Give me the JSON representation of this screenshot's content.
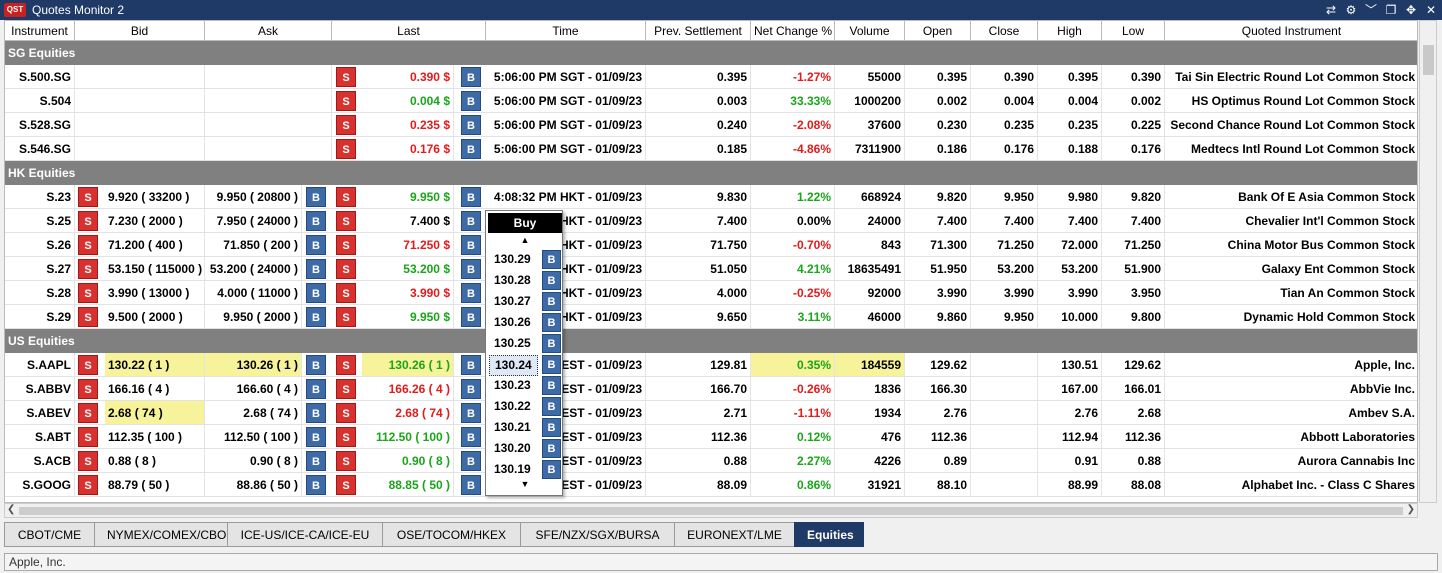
{
  "window": {
    "title": "Quotes Monitor 2",
    "logo": "QST"
  },
  "titlebar_icons": [
    "link-icon",
    "settings-icon",
    "collapse-icon",
    "restore-icon",
    "move-icon",
    "close-icon"
  ],
  "columns": [
    "Instrument",
    "Bid",
    "Ask",
    "Last",
    "Time",
    "Prev. Settlement",
    "Net Change %",
    "Volume",
    "Open",
    "Close",
    "High",
    "Low",
    "Quoted Instrument"
  ],
  "sections": {
    "sg": "SG Equities",
    "hk": "HK Equities",
    "us": "US Equities"
  },
  "labels": {
    "sell": "S",
    "buy": "B"
  },
  "sg_rows": [
    {
      "inst": "S.500.SG",
      "last": "0.390 $",
      "time": "5:06:00 PM SGT - 01/09/23",
      "prev": "0.395",
      "chg": "-1.27%",
      "vol": "55000",
      "open": "0.395",
      "close": "0.390",
      "high": "0.395",
      "low": "0.390",
      "quoted": "Tai Sin Electric Round Lot Common Stock"
    },
    {
      "inst": "S.504",
      "last": "0.004 $",
      "time": "5:06:00 PM SGT - 01/09/23",
      "prev": "0.003",
      "chg": "33.33%",
      "vol": "1000200",
      "open": "0.002",
      "close": "0.004",
      "high": "0.004",
      "low": "0.002",
      "quoted": "HS Optimus Round Lot Common Stock"
    },
    {
      "inst": "S.528.SG",
      "last": "0.235 $",
      "time": "5:06:00 PM SGT - 01/09/23",
      "prev": "0.240",
      "chg": "-2.08%",
      "vol": "37600",
      "open": "0.230",
      "close": "0.235",
      "high": "0.235",
      "low": "0.225",
      "quoted": "Second Chance Round Lot Common Stock"
    },
    {
      "inst": "S.546.SG",
      "last": "0.176 $",
      "time": "5:06:00 PM SGT - 01/09/23",
      "prev": "0.185",
      "chg": "-4.86%",
      "vol": "7311900",
      "open": "0.186",
      "close": "0.176",
      "high": "0.188",
      "low": "0.176",
      "quoted": "Medtecs Intl Round Lot Common Stock"
    }
  ],
  "hk_rows": [
    {
      "inst": "S.23",
      "bid": "9.920 ( 33200 )",
      "ask": "9.950 ( 20800 )",
      "last": "9.950 $",
      "time": "4:08:32 PM HKT - 01/09/23",
      "prev": "9.830",
      "chg": "1.22%",
      "vol": "668924",
      "open": "9.820",
      "close": "9.950",
      "high": "9.980",
      "low": "9.820",
      "quoted": "Bank Of E Asia Common Stock"
    },
    {
      "inst": "S.25",
      "bid": "7.230 ( 2000 )",
      "ask": "7.950 ( 24000 )",
      "last": "7.400 $",
      "time": "HKT - 01/09/23",
      "prev": "7.400",
      "chg": "0.00%",
      "vol": "24000",
      "open": "7.400",
      "close": "7.400",
      "high": "7.400",
      "low": "7.400",
      "quoted": "Chevalier Int'l Common Stock"
    },
    {
      "inst": "S.26",
      "bid": "71.200 ( 400 )",
      "ask": "71.850 ( 200 )",
      "last": "71.250 $",
      "time": "HKT - 01/09/23",
      "prev": "71.750",
      "chg": "-0.70%",
      "vol": "843",
      "open": "71.300",
      "close": "71.250",
      "high": "72.000",
      "low": "71.250",
      "quoted": "China Motor Bus Common Stock"
    },
    {
      "inst": "S.27",
      "bid": "53.150 ( 115000 )",
      "ask": "53.200 ( 24000 )",
      "last": "53.200 $",
      "time": "HKT - 01/09/23",
      "prev": "51.050",
      "chg": "4.21%",
      "vol": "18635491",
      "open": "51.950",
      "close": "53.200",
      "high": "53.200",
      "low": "51.900",
      "quoted": "Galaxy Ent Common Stock"
    },
    {
      "inst": "S.28",
      "bid": "3.990 ( 13000 )",
      "ask": "4.000 ( 11000 )",
      "last": "3.990 $",
      "time": "HKT - 01/09/23",
      "prev": "4.000",
      "chg": "-0.25%",
      "vol": "92000",
      "open": "3.990",
      "close": "3.990",
      "high": "3.990",
      "low": "3.950",
      "quoted": "Tian An Common Stock"
    },
    {
      "inst": "S.29",
      "bid": "9.500 ( 2000 )",
      "ask": "9.950 ( 2000 )",
      "last": "9.950 $",
      "time": "HKT - 01/09/23",
      "prev": "9.650",
      "chg": "3.11%",
      "vol": "46000",
      "open": "9.860",
      "close": "9.950",
      "high": "10.000",
      "low": "9.800",
      "quoted": "Dynamic Hold Common Stock"
    }
  ],
  "us_rows": [
    {
      "inst": "S.AAPL",
      "bid": "130.22 ( 1 )",
      "ask": "130.26 ( 1 )",
      "last": "130.26 ( 1 )",
      "time": "EST - 01/09/23",
      "prev": "129.81",
      "chg": "0.35%",
      "vol": "184559",
      "open": "129.62",
      "close": "",
      "high": "130.51",
      "low": "129.62",
      "quoted": "Apple, Inc."
    },
    {
      "inst": "S.ABBV",
      "bid": "166.16 ( 4 )",
      "ask": "166.60 ( 4 )",
      "last": "166.26 ( 4 )",
      "time": "EST - 01/09/23",
      "prev": "166.70",
      "chg": "-0.26%",
      "vol": "1836",
      "open": "166.30",
      "close": "",
      "high": "167.00",
      "low": "166.01",
      "quoted": "AbbVie Inc."
    },
    {
      "inst": "S.ABEV",
      "bid": "2.68 ( 74 )",
      "ask": "2.68 ( 74 )",
      "last": "2.68 ( 74 )",
      "time": "EST - 01/09/23",
      "prev": "2.71",
      "chg": "-1.11%",
      "vol": "1934",
      "open": "2.76",
      "close": "",
      "high": "2.76",
      "low": "2.68",
      "quoted": "Ambev S.A."
    },
    {
      "inst": "S.ABT",
      "bid": "112.35 ( 100 )",
      "ask": "112.50 ( 100 )",
      "last": "112.50 ( 100 )",
      "time": "EST - 01/09/23",
      "prev": "112.36",
      "chg": "0.12%",
      "vol": "476",
      "open": "112.36",
      "close": "",
      "high": "112.94",
      "low": "112.36",
      "quoted": "Abbott Laboratories"
    },
    {
      "inst": "S.ACB",
      "bid": "0.88 ( 8 )",
      "ask": "0.90 ( 8 )",
      "last": "0.90 ( 8 )",
      "time": "EST - 01/09/23",
      "prev": "0.88",
      "chg": "2.27%",
      "vol": "4226",
      "open": "0.89",
      "close": "",
      "high": "0.91",
      "low": "0.88",
      "quoted": "Aurora Cannabis Inc"
    },
    {
      "inst": "S.GOOG",
      "bid": "88.79 ( 50 )",
      "ask": "88.86 ( 50 )",
      "last": "88.85 ( 50 )",
      "time": "EST - 01/09/23",
      "prev": "88.09",
      "chg": "0.86%",
      "vol": "31921",
      "open": "88.10",
      "close": "",
      "high": "88.99",
      "low": "88.08",
      "quoted": "Alphabet Inc. - Class C Shares"
    }
  ],
  "popup": {
    "title": "Buy",
    "prices": [
      "130.29",
      "130.28",
      "130.27",
      "130.26",
      "130.25",
      "130.24",
      "130.23",
      "130.22",
      "130.21",
      "130.20",
      "130.19"
    ],
    "selected_index": 5
  },
  "tabs": [
    "CBOT/CME",
    "NYMEX/COMEX/CBOE",
    "ICE-US/ICE-CA/ICE-EU",
    "OSE/TOCOM/HKEX",
    "SFE/NZX/SGX/BURSA",
    "EURONEXT/LME",
    "Equities"
  ],
  "active_tab_index": 6,
  "status": "Apple, Inc.",
  "colors": {
    "titlebar": "#1f3a67",
    "sell": "#d9312e",
    "buy": "#3e6aa6",
    "up": "#1aa51a",
    "down": "#e11b1b",
    "highlight": "#f7f39a",
    "section": "#808080"
  }
}
